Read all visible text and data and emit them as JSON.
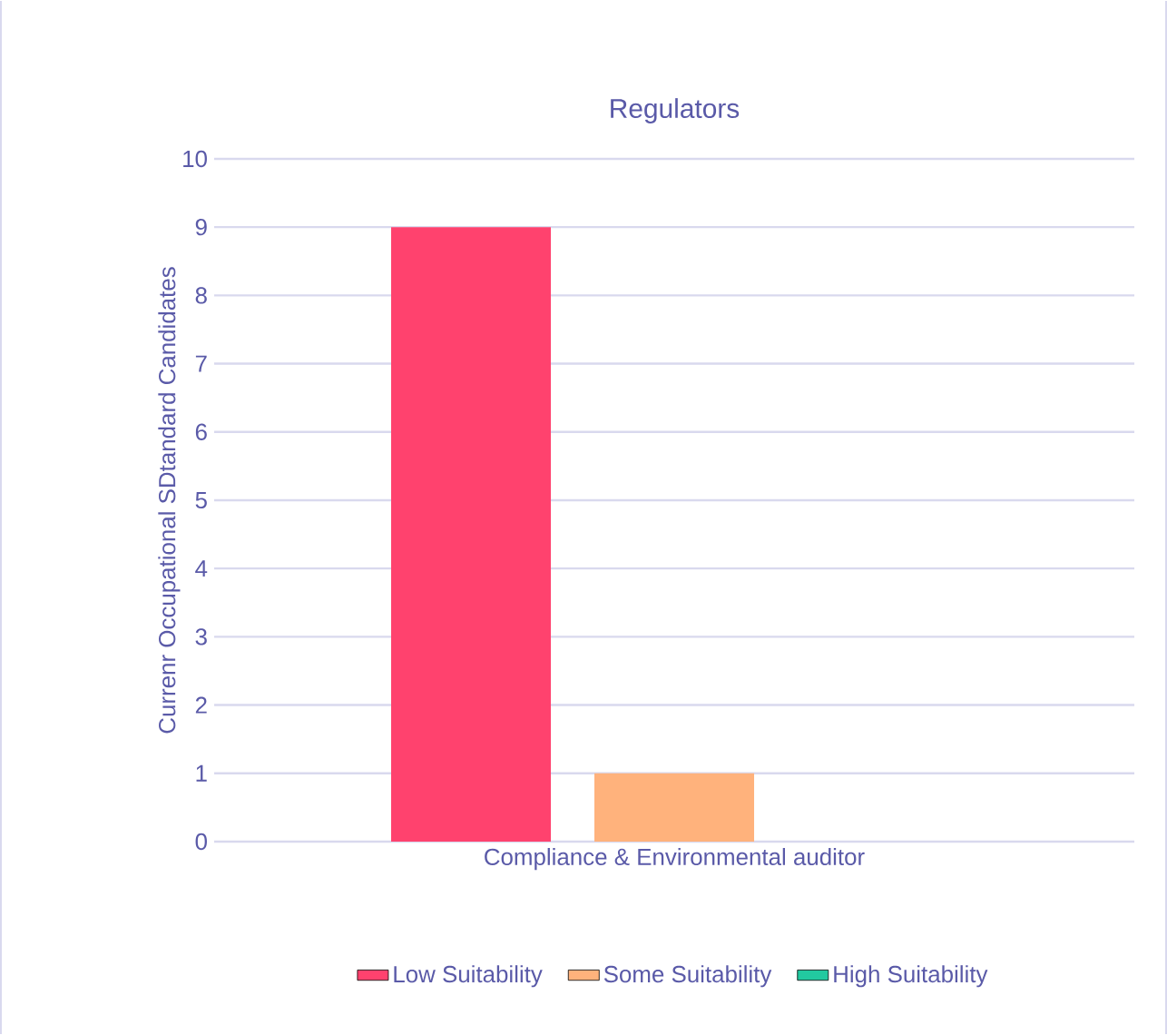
{
  "chart_data": {
    "type": "bar",
    "title": "Regulators",
    "ylabel": "Currenr Occupational SDtandard Candidates",
    "categories": [
      "Compliance & Environmental auditor"
    ],
    "series": [
      {
        "name": "Low Suitability",
        "color": "#ff426e",
        "values": [
          9
        ]
      },
      {
        "name": "Some Suitability",
        "color": "#ffb27c",
        "values": [
          1
        ]
      },
      {
        "name": "High Suitability",
        "color": "#22c9a0",
        "values": [
          0
        ]
      }
    ],
    "ylim": [
      0,
      10
    ],
    "yticks": [
      0,
      1,
      2,
      3,
      4,
      5,
      6,
      7,
      8,
      9,
      10
    ],
    "grid": "y",
    "legend": "bottom"
  }
}
